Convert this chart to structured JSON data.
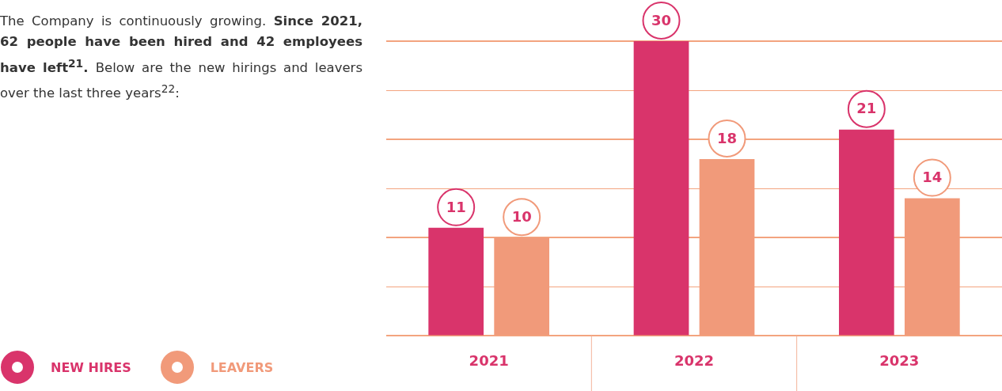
{
  "chart_data": {
    "type": "bar",
    "annotations": [
      "The Company is continuously growing.",
      "Since 2021, 62 people have been hired and 42 employees have left$^{21}$.",
      "Below are the new hirings and leavers over the last three years$^{22}$:"
    ],
    "categories": [
      "2021",
      "2022",
      "2023"
    ],
    "series": [
      {
        "name": "NEW HIRES",
        "color": "#d9346b",
        "values": [
          11,
          30,
          21
        ]
      },
      {
        "name": "LEAVERS",
        "color": "#f19a7a",
        "values": [
          10,
          18,
          14
        ]
      }
    ],
    "ylim": [
      0,
      30
    ],
    "yticks": [
      {
        "value": 0,
        "label": null
      },
      {
        "value": 5,
        "label": null
      },
      {
        "value": 10,
        "label": null
      },
      {
        "value": 15,
        "label": null
      },
      {
        "value": 20,
        "label": null
      },
      {
        "value": 25,
        "label": null
      },
      {
        "value": 30,
        "label": null
      }
    ],
    "tick_labels": "x",
    "grid": "y",
    "data_labels": true,
    "legend": "bottom left"
  }
}
